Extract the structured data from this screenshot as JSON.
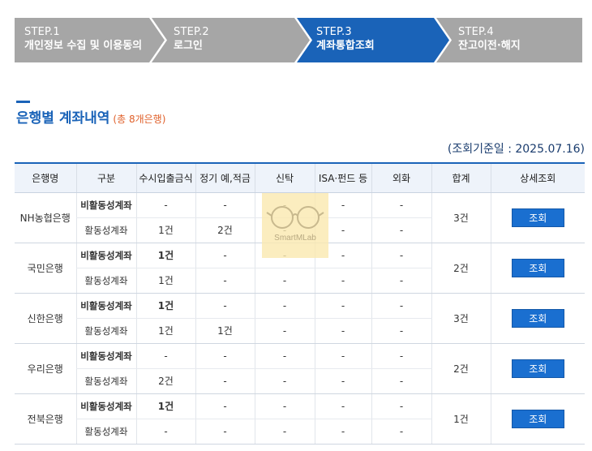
{
  "steps": [
    {
      "num": "STEP.1",
      "label": "개인정보 수집 및 이용동의",
      "active": false
    },
    {
      "num": "STEP.2",
      "label": "로그인",
      "active": false
    },
    {
      "num": "STEP.3",
      "label": "계좌통합조회",
      "active": true
    },
    {
      "num": "STEP.4",
      "label": "잔고이전·해지",
      "active": false
    }
  ],
  "colors": {
    "step_inactive": "#a6a6a6",
    "step_active": "#1a63b8",
    "title": "#1a63b8",
    "count": "#e0602a",
    "button": "#1a6fd0"
  },
  "section": {
    "title": "은행별 계좌내역",
    "count": "(총 8개은행)"
  },
  "ref_date": "(조회기준일 : 2025.07.16)",
  "table": {
    "headers": [
      "은행명",
      "구분",
      "수시입출금식",
      "정기 예,적금",
      "신탁",
      "ISA·펀드 등",
      "외화",
      "합계",
      "상세조회"
    ],
    "button_label": "조회",
    "banks": [
      {
        "name": "NH농협은행",
        "total": "3건",
        "rows": [
          {
            "type": "비활동성계좌",
            "cells": [
              "-",
              "-",
              "-",
              "-",
              "-"
            ]
          },
          {
            "type": "활동성계좌",
            "cells": [
              "1건",
              "2건",
              "-",
              "-",
              "-"
            ]
          }
        ]
      },
      {
        "name": "국민은행",
        "total": "2건",
        "rows": [
          {
            "type": "비활동성계좌",
            "cells": [
              "1건",
              "-",
              "-",
              "-",
              "-"
            ]
          },
          {
            "type": "활동성계좌",
            "cells": [
              "1건",
              "-",
              "-",
              "-",
              "-"
            ]
          }
        ]
      },
      {
        "name": "신한은행",
        "total": "3건",
        "rows": [
          {
            "type": "비활동성계좌",
            "cells": [
              "1건",
              "-",
              "-",
              "-",
              "-"
            ]
          },
          {
            "type": "활동성계좌",
            "cells": [
              "1건",
              "1건",
              "-",
              "-",
              "-"
            ]
          }
        ]
      },
      {
        "name": "우리은행",
        "total": "2건",
        "rows": [
          {
            "type": "비활동성계좌",
            "cells": [
              "-",
              "-",
              "-",
              "-",
              "-"
            ]
          },
          {
            "type": "활동성계좌",
            "cells": [
              "2건",
              "-",
              "-",
              "-",
              "-"
            ]
          }
        ]
      },
      {
        "name": "전북은행",
        "total": "1건",
        "rows": [
          {
            "type": "비활동성계좌",
            "cells": [
              "1건",
              "-",
              "-",
              "-",
              "-"
            ]
          },
          {
            "type": "활동성계좌",
            "cells": [
              "-",
              "-",
              "-",
              "-",
              "-"
            ]
          }
        ]
      }
    ]
  },
  "watermark": {
    "text": "SmartMLab",
    "icon": "glasses-icon"
  }
}
